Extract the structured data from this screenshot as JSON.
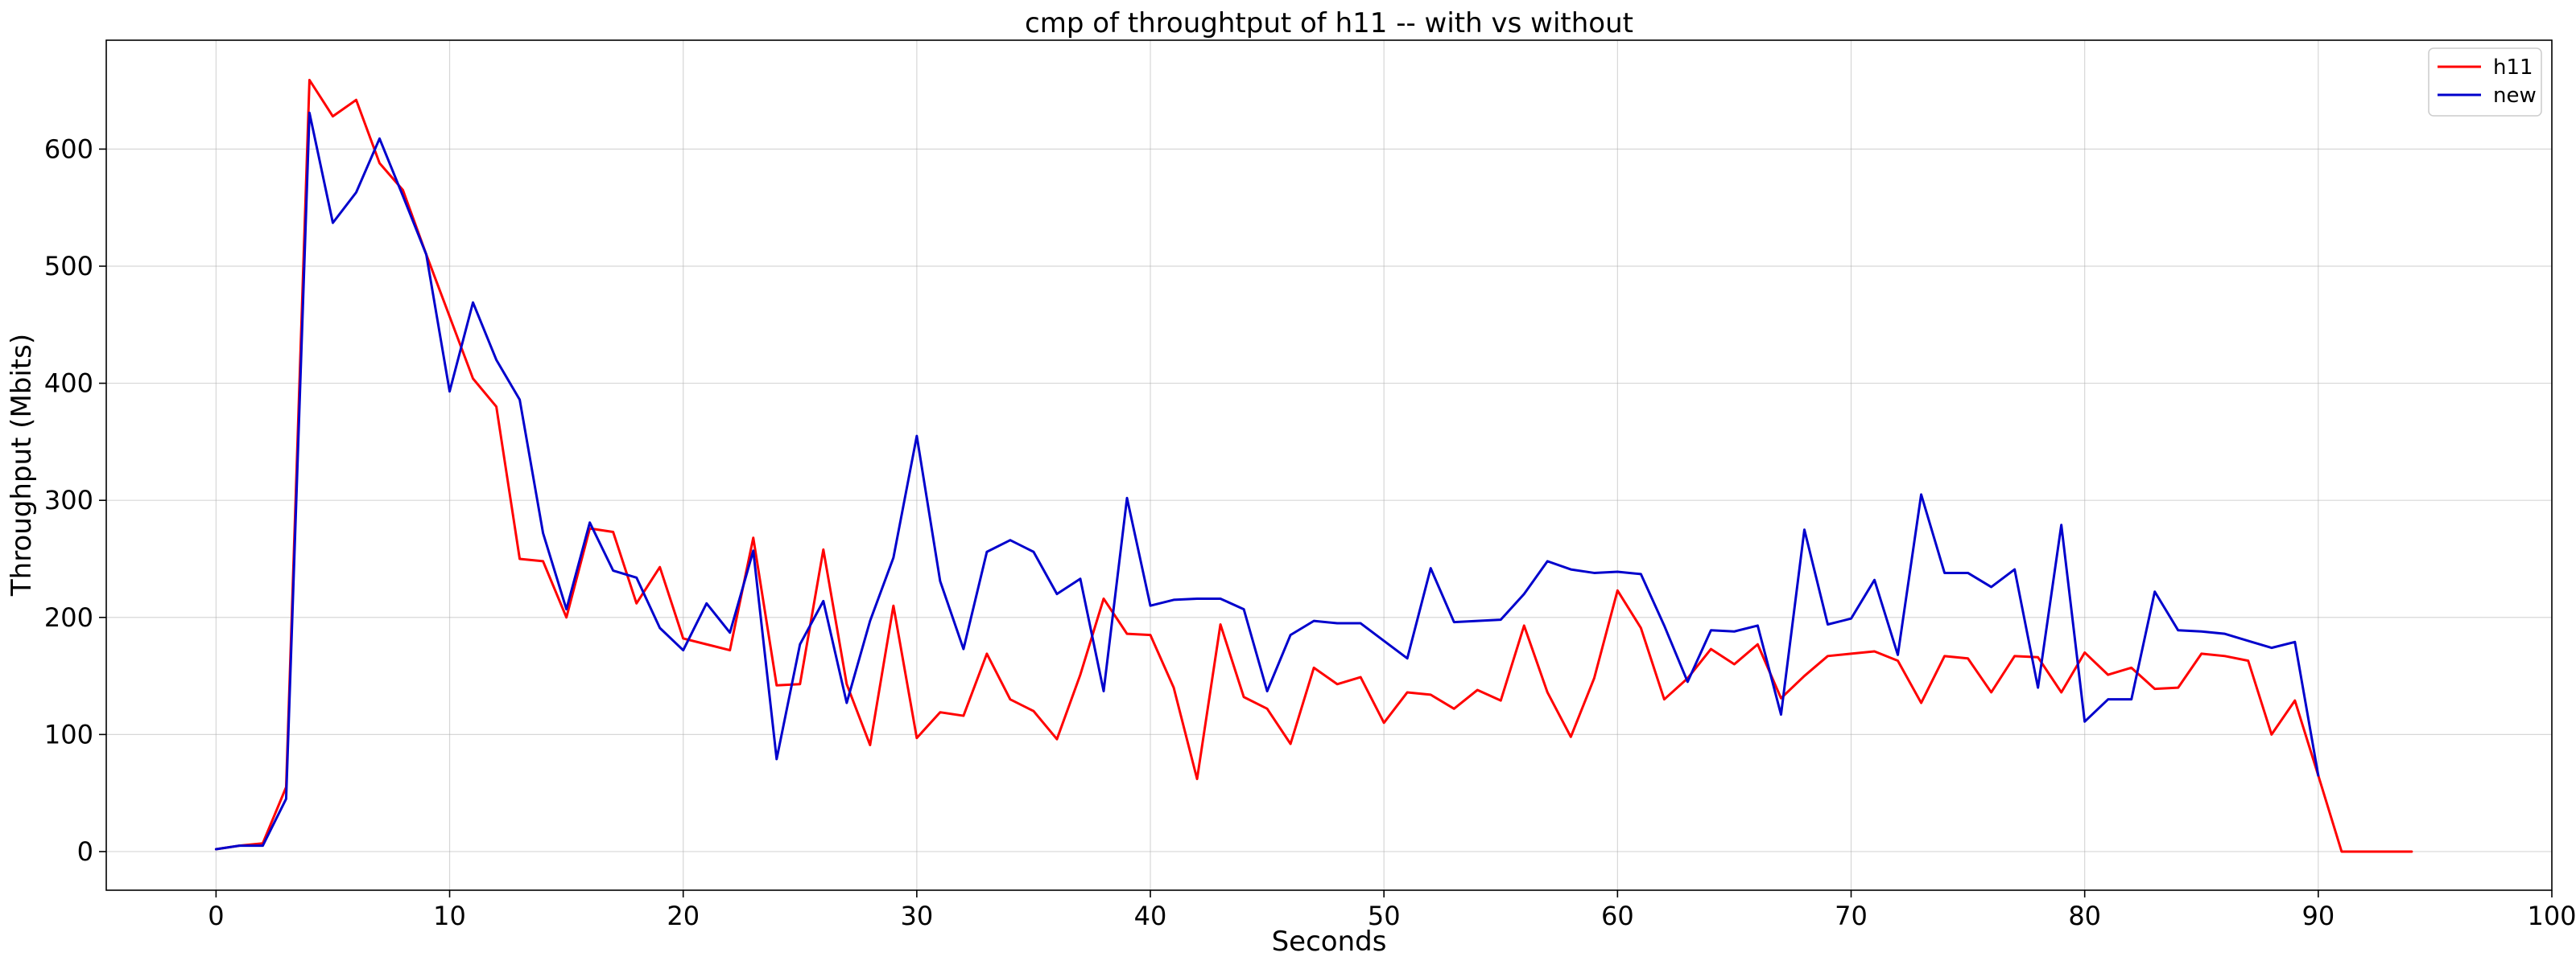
{
  "chart_data": {
    "type": "line",
    "title": "cmp of throughtput of h11 -- with vs without",
    "xlabel": "Seconds",
    "ylabel": "Throughput (Mbits)",
    "xlim": [
      -4.7,
      100
    ],
    "ylim": [
      -33,
      693
    ],
    "xticks": [
      0,
      10,
      20,
      30,
      40,
      50,
      60,
      70,
      80,
      90,
      100
    ],
    "yticks": [
      0,
      100,
      200,
      300,
      400,
      500,
      600
    ],
    "grid": true,
    "legend_position": "top-right",
    "series": [
      {
        "name": "h11",
        "color": "#ff0000",
        "x": [
          0,
          1,
          2,
          3,
          4,
          5,
          6,
          7,
          8,
          9,
          10,
          11,
          12,
          13,
          14,
          15,
          16,
          17,
          18,
          19,
          20,
          21,
          22,
          23,
          24,
          25,
          26,
          27,
          28,
          29,
          30,
          31,
          32,
          33,
          34,
          35,
          36,
          37,
          38,
          39,
          40,
          41,
          42,
          43,
          44,
          45,
          46,
          47,
          48,
          49,
          50,
          51,
          52,
          53,
          54,
          55,
          56,
          57,
          58,
          59,
          60,
          61,
          62,
          63,
          64,
          65,
          66,
          67,
          68,
          69,
          70,
          71,
          72,
          73,
          74,
          75,
          76,
          77,
          78,
          79,
          80,
          81,
          82,
          83,
          84,
          85,
          86,
          87,
          88,
          89,
          90,
          91,
          92,
          93,
          94
        ],
        "values": [
          2,
          5,
          7,
          55,
          659,
          628,
          642,
          588,
          565,
          510,
          457,
          404,
          380,
          250,
          248,
          200,
          276,
          273,
          212,
          243,
          182,
          177,
          172,
          268,
          142,
          143,
          258,
          143,
          91,
          210,
          97,
          119,
          116,
          169,
          130,
          120,
          96,
          151,
          216,
          186,
          185,
          140,
          62,
          194,
          132,
          122,
          92,
          157,
          143,
          149,
          110,
          136,
          134,
          122,
          138,
          129,
          193,
          136,
          98,
          148,
          223,
          191,
          130,
          148,
          173,
          160,
          177,
          131,
          150,
          167,
          169,
          171,
          163,
          127,
          167,
          165,
          136,
          167,
          166,
          136,
          170,
          151,
          157,
          139,
          140,
          169,
          167,
          163,
          100,
          129,
          65,
          0,
          0,
          0,
          0
        ]
      },
      {
        "name": "new",
        "color": "#0000cc",
        "x": [
          0,
          1,
          2,
          3,
          4,
          5,
          6,
          7,
          8,
          9,
          10,
          11,
          12,
          13,
          14,
          15,
          16,
          17,
          18,
          19,
          20,
          21,
          22,
          23,
          24,
          25,
          26,
          27,
          28,
          29,
          30,
          31,
          32,
          33,
          34,
          35,
          36,
          37,
          38,
          39,
          40,
          41,
          42,
          43,
          44,
          45,
          46,
          47,
          48,
          49,
          50,
          51,
          52,
          53,
          54,
          55,
          56,
          57,
          58,
          59,
          60,
          61,
          62,
          63,
          64,
          65,
          66,
          67,
          68,
          69,
          70,
          71,
          72,
          73,
          74,
          75,
          76,
          77,
          78,
          79,
          80,
          81,
          82,
          83,
          84,
          85,
          86,
          87,
          88,
          89,
          90
        ],
        "values": [
          2,
          5,
          5,
          45,
          631,
          537,
          563,
          609,
          560,
          510,
          393,
          469,
          420,
          386,
          272,
          207,
          281,
          240,
          234,
          191,
          172,
          212,
          187,
          257,
          79,
          177,
          214,
          127,
          197,
          251,
          355,
          231,
          173,
          256,
          266,
          256,
          220,
          233,
          137,
          302,
          210,
          215,
          216,
          216,
          207,
          137,
          185,
          197,
          195,
          195,
          180,
          165,
          242,
          196,
          197,
          198,
          220,
          248,
          241,
          238,
          239,
          237,
          193,
          145,
          189,
          188,
          193,
          117,
          275,
          194,
          199,
          232,
          168,
          305,
          238,
          238,
          226,
          241,
          140,
          279,
          111,
          130,
          130,
          222,
          189,
          188,
          186,
          180,
          174,
          179,
          65
        ]
      }
    ]
  }
}
